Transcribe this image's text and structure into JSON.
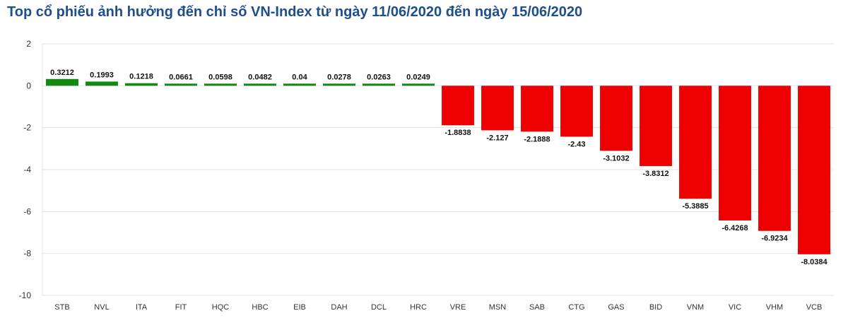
{
  "chart_data": {
    "type": "bar",
    "title": "Top cổ phiếu ảnh hưởng đến chỉ số VN-Index từ ngày 11/06/2020 đến ngày 15/06/2020",
    "xlabel": "",
    "ylabel": "",
    "categories": [
      "STB",
      "NVL",
      "ITA",
      "FIT",
      "HQC",
      "HBC",
      "EIB",
      "DAH",
      "DCL",
      "HRC",
      "VRE",
      "MSN",
      "SAB",
      "CTG",
      "GAS",
      "BID",
      "VNM",
      "VIC",
      "VHM",
      "VCB"
    ],
    "values": [
      0.3212,
      0.1993,
      0.1218,
      0.0661,
      0.0598,
      0.0482,
      0.04,
      0.0278,
      0.0263,
      0.0249,
      -1.8838,
      -2.127,
      -2.1888,
      -2.43,
      -3.1032,
      -3.8312,
      -5.3885,
      -6.4268,
      -6.9234,
      -8.0384
    ],
    "value_labels": [
      "0.3212",
      "0.1993",
      "0.1218",
      "0.0661",
      "0.0598",
      "0.0482",
      "0.04",
      "0.0278",
      "0.0263",
      "0.0249",
      "-1.8838",
      "-2.127",
      "-2.1888",
      "-2.43",
      "-3.1032",
      "-3.8312",
      "-5.3885",
      "-6.4268",
      "-6.9234",
      "-8.0384"
    ],
    "ylim": [
      -10,
      2
    ],
    "yticks": [
      "2",
      "0",
      "-2",
      "-4",
      "-6",
      "-8",
      "-10"
    ],
    "grid": true,
    "legend": "none",
    "colors": {
      "positive": "#128a12",
      "negative": "#ee0000",
      "grid": "#e3e3e3",
      "title": "#1f4e8c"
    }
  }
}
